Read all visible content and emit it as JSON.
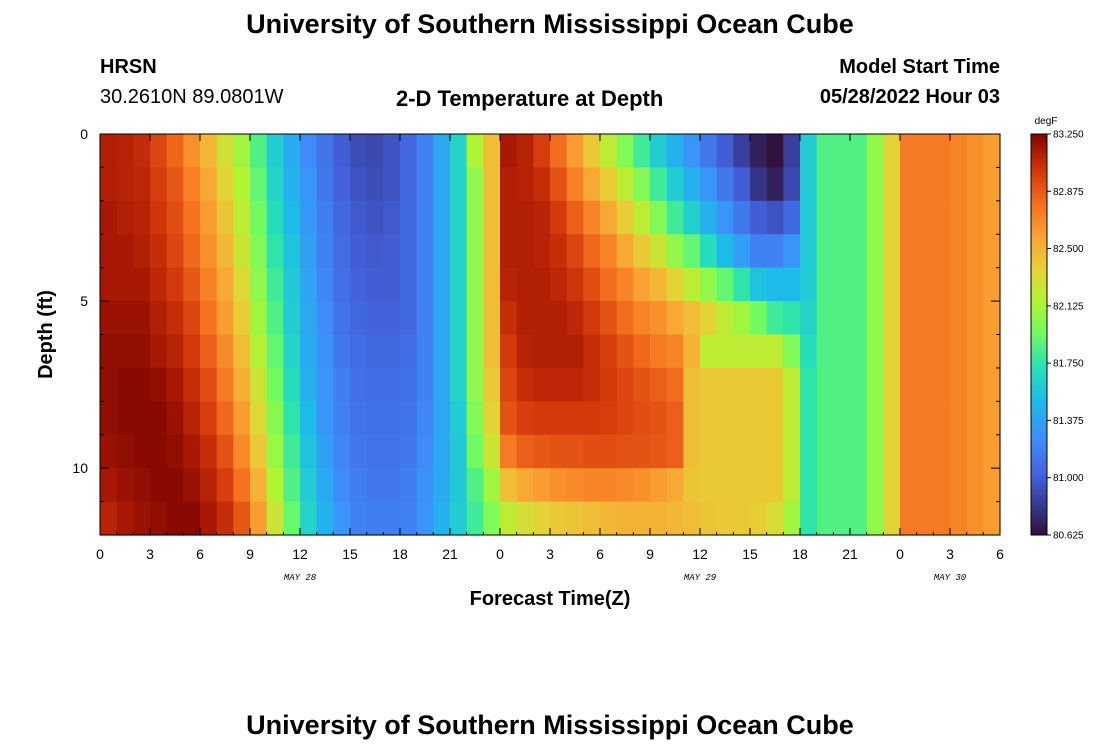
{
  "page": {
    "title": "University of Southern Mississippi Ocean Cube",
    "station": "HRSN",
    "coords": "30.2610N  89.0801W",
    "subtitle": "2-D Temperature at Depth",
    "model_label": "Model Start Time",
    "model_time": "05/28/2022 Hour 03",
    "footer_title": "University of Southern Mississippi Ocean Cube"
  },
  "chart_data": {
    "type": "heatmap",
    "title": "2-D Temperature at Depth",
    "xlabel": "Forecast Time(Z)",
    "ylabel": "Depth (ft)",
    "x_ticks": [
      "0",
      "3",
      "6",
      "9",
      "12",
      "15",
      "18",
      "21",
      "0",
      "3",
      "6",
      "9",
      "12",
      "15",
      "18",
      "21",
      "0",
      "3",
      "6"
    ],
    "x_tick_hours": [
      0,
      3,
      6,
      9,
      12,
      15,
      18,
      21,
      24,
      27,
      30,
      33,
      36,
      39,
      42,
      45,
      48,
      51,
      54
    ],
    "date_labels": [
      {
        "label": "MAY 28",
        "hour": 12
      },
      {
        "label": "MAY 29",
        "hour": 36
      },
      {
        "label": "MAY 30",
        "hour": 51
      }
    ],
    "xlim": [
      0,
      54
    ],
    "y_ticks": [
      "0",
      "5",
      "10"
    ],
    "y_tick_values": [
      0,
      5,
      10
    ],
    "ylim": [
      0,
      12
    ],
    "y_inverted": true,
    "colorbar": {
      "unit": "degF",
      "labels": [
        "83.250",
        "82.875",
        "82.500",
        "82.125",
        "81.750",
        "81.375",
        "81.000",
        "80.625"
      ],
      "min": 80.625,
      "max": 83.25
    },
    "time_hours": [
      0,
      1,
      2,
      3,
      4,
      5,
      6,
      7,
      8,
      9,
      10,
      11,
      12,
      13,
      14,
      15,
      16,
      17,
      18,
      19,
      20,
      21,
      22,
      23,
      24,
      25,
      26,
      27,
      28,
      29,
      30,
      31,
      32,
      33,
      34,
      35,
      36,
      37,
      38,
      39,
      40,
      41,
      42,
      43,
      44,
      45,
      46,
      47,
      48,
      49,
      50,
      51,
      52,
      53,
      54
    ],
    "depth_ft": [
      0.5,
      1.5,
      2.5,
      3.5,
      4.5,
      5.5,
      6.5,
      7.5,
      8.5,
      9.5,
      10.5,
      11.5
    ],
    "values_degF": [
      [
        83.12,
        83.1,
        83.06,
        82.95,
        82.83,
        82.65,
        82.48,
        82.28,
        82.1,
        81.85,
        81.6,
        81.42,
        81.25,
        81.12,
        81.0,
        80.92,
        80.9,
        80.95,
        81.05,
        81.2,
        81.4,
        81.65,
        82.15,
        82.45,
        83.15,
        83.1,
        82.98,
        82.8,
        82.6,
        82.4,
        82.2,
        82.0,
        81.8,
        81.6,
        81.45,
        81.3,
        81.15,
        81.0,
        80.85,
        80.7,
        80.62,
        80.85,
        81.6,
        81.85,
        81.85,
        81.85,
        82.05,
        82.35,
        82.75,
        82.75,
        82.75,
        82.7,
        82.65,
        82.6,
        82.55
      ],
      [
        83.12,
        83.1,
        83.08,
        82.98,
        82.88,
        82.72,
        82.55,
        82.35,
        82.15,
        81.9,
        81.65,
        81.45,
        81.3,
        81.15,
        81.02,
        80.95,
        80.92,
        80.95,
        81.05,
        81.2,
        81.4,
        81.65,
        82.05,
        82.45,
        83.12,
        83.1,
        83.05,
        82.9,
        82.72,
        82.55,
        82.38,
        82.2,
        82.0,
        81.8,
        81.6,
        81.45,
        81.3,
        81.15,
        81.0,
        80.8,
        80.7,
        80.9,
        81.6,
        81.85,
        81.85,
        81.85,
        82.05,
        82.35,
        82.75,
        82.75,
        82.75,
        82.7,
        82.65,
        82.6,
        82.55
      ],
      [
        83.15,
        83.12,
        83.1,
        83.02,
        82.92,
        82.78,
        82.6,
        82.42,
        82.2,
        81.95,
        81.7,
        81.5,
        81.32,
        81.18,
        81.05,
        80.98,
        80.95,
        80.98,
        81.05,
        81.2,
        81.4,
        81.65,
        82.05,
        82.45,
        83.12,
        83.12,
        83.1,
        83.0,
        82.85,
        82.7,
        82.55,
        82.38,
        82.2,
        82.0,
        81.8,
        81.62,
        81.45,
        81.3,
        81.15,
        81.0,
        80.95,
        81.05,
        81.6,
        81.85,
        81.85,
        81.85,
        82.05,
        82.35,
        82.75,
        82.75,
        82.75,
        82.7,
        82.65,
        82.6,
        82.55
      ],
      [
        83.15,
        83.15,
        83.12,
        83.05,
        82.95,
        82.82,
        82.65,
        82.48,
        82.25,
        82.0,
        81.75,
        81.55,
        81.35,
        81.2,
        81.08,
        81.0,
        80.98,
        81.0,
        81.05,
        81.2,
        81.4,
        81.65,
        82.05,
        82.45,
        83.12,
        83.12,
        83.1,
        83.05,
        82.95,
        82.82,
        82.7,
        82.55,
        82.4,
        82.25,
        82.05,
        81.9,
        81.7,
        81.5,
        81.35,
        81.2,
        81.2,
        81.3,
        81.6,
        81.85,
        81.85,
        81.85,
        82.05,
        82.35,
        82.75,
        82.75,
        82.75,
        82.7,
        82.65,
        82.6,
        82.55
      ],
      [
        83.15,
        83.15,
        83.15,
        83.08,
        83.0,
        82.88,
        82.72,
        82.55,
        82.32,
        82.05,
        81.8,
        81.58,
        81.38,
        81.22,
        81.1,
        81.02,
        81.0,
        81.0,
        81.05,
        81.2,
        81.4,
        81.65,
        82.05,
        82.45,
        83.1,
        83.12,
        83.12,
        83.08,
        83.02,
        82.92,
        82.8,
        82.7,
        82.58,
        82.48,
        82.35,
        82.2,
        82.05,
        81.9,
        81.75,
        81.55,
        81.5,
        81.5,
        81.6,
        81.85,
        81.85,
        81.85,
        82.05,
        82.35,
        82.75,
        82.75,
        82.75,
        82.7,
        82.65,
        82.6,
        82.55
      ],
      [
        83.18,
        83.18,
        83.18,
        83.12,
        83.05,
        82.95,
        82.78,
        82.6,
        82.38,
        82.1,
        81.85,
        81.6,
        81.4,
        81.25,
        81.12,
        81.05,
        81.02,
        81.02,
        81.05,
        81.2,
        81.4,
        81.65,
        82.05,
        82.45,
        83.05,
        83.12,
        83.12,
        83.12,
        83.08,
        83.0,
        82.9,
        82.8,
        82.7,
        82.65,
        82.55,
        82.45,
        82.35,
        82.2,
        82.1,
        81.95,
        81.8,
        81.75,
        81.65,
        81.85,
        81.85,
        81.85,
        82.05,
        82.35,
        82.75,
        82.75,
        82.75,
        82.7,
        82.65,
        82.6,
        82.55
      ],
      [
        83.2,
        83.2,
        83.2,
        83.15,
        83.1,
        83.0,
        82.85,
        82.68,
        82.45,
        82.18,
        81.9,
        81.65,
        81.42,
        81.28,
        81.15,
        81.08,
        81.05,
        81.05,
        81.08,
        81.2,
        81.4,
        81.65,
        82.05,
        82.45,
        83.0,
        83.1,
        83.12,
        83.12,
        83.12,
        83.05,
        82.98,
        82.9,
        82.82,
        82.75,
        82.7,
        82.5,
        82.2,
        82.2,
        82.2,
        82.2,
        82.2,
        82.0,
        81.7,
        81.85,
        81.85,
        81.85,
        82.05,
        82.35,
        82.75,
        82.75,
        82.75,
        82.7,
        82.65,
        82.6,
        82.55
      ],
      [
        83.2,
        83.22,
        83.22,
        83.2,
        83.15,
        83.05,
        82.92,
        82.75,
        82.52,
        82.25,
        81.95,
        81.7,
        81.45,
        81.3,
        81.18,
        81.1,
        81.08,
        81.08,
        81.1,
        81.2,
        81.4,
        81.65,
        82.05,
        82.4,
        82.95,
        83.05,
        83.08,
        83.08,
        83.08,
        83.05,
        83.0,
        82.95,
        82.9,
        82.85,
        82.8,
        82.45,
        82.4,
        82.4,
        82.4,
        82.4,
        82.4,
        82.2,
        81.75,
        81.85,
        81.85,
        81.85,
        82.05,
        82.35,
        82.75,
        82.75,
        82.75,
        82.7,
        82.65,
        82.6,
        82.55
      ],
      [
        83.2,
        83.22,
        83.22,
        83.22,
        83.18,
        83.1,
        82.98,
        82.82,
        82.6,
        82.32,
        82.02,
        81.75,
        81.5,
        81.32,
        81.2,
        81.12,
        81.1,
        81.1,
        81.12,
        81.22,
        81.4,
        81.6,
        82.0,
        82.35,
        82.9,
        82.98,
        83.0,
        83.0,
        83.0,
        83.0,
        82.98,
        82.95,
        82.92,
        82.9,
        82.85,
        82.45,
        82.4,
        82.4,
        82.4,
        82.4,
        82.4,
        82.2,
        81.75,
        81.85,
        81.85,
        81.85,
        82.05,
        82.35,
        82.75,
        82.75,
        82.75,
        82.7,
        82.65,
        82.6,
        82.55
      ],
      [
        83.18,
        83.2,
        83.22,
        83.22,
        83.2,
        83.15,
        83.05,
        82.9,
        82.68,
        82.4,
        82.08,
        81.8,
        81.55,
        81.35,
        81.22,
        81.15,
        81.12,
        81.12,
        81.15,
        81.25,
        81.4,
        81.58,
        81.95,
        82.25,
        82.75,
        82.85,
        82.88,
        82.9,
        82.9,
        82.92,
        82.92,
        82.9,
        82.9,
        82.88,
        82.85,
        82.45,
        82.4,
        82.4,
        82.4,
        82.4,
        82.4,
        82.2,
        81.75,
        81.85,
        81.85,
        81.85,
        82.05,
        82.35,
        82.75,
        82.75,
        82.75,
        82.7,
        82.65,
        82.6,
        82.55
      ],
      [
        83.15,
        83.18,
        83.2,
        83.22,
        83.22,
        83.18,
        83.1,
        82.98,
        82.78,
        82.5,
        82.15,
        81.85,
        81.6,
        81.4,
        81.25,
        81.18,
        81.15,
        81.15,
        81.18,
        81.28,
        81.42,
        81.58,
        81.85,
        82.1,
        82.45,
        82.55,
        82.6,
        82.65,
        82.68,
        82.7,
        82.7,
        82.68,
        82.65,
        82.6,
        82.55,
        82.42,
        82.4,
        82.4,
        82.4,
        82.4,
        82.4,
        82.2,
        81.75,
        81.85,
        81.85,
        81.85,
        82.05,
        82.35,
        82.75,
        82.75,
        82.75,
        82.7,
        82.65,
        82.6,
        82.55
      ],
      [
        83.1,
        83.15,
        83.18,
        83.2,
        83.22,
        83.22,
        83.15,
        83.05,
        82.88,
        82.6,
        82.25,
        81.92,
        81.65,
        81.45,
        81.3,
        81.2,
        81.18,
        81.18,
        81.2,
        81.3,
        81.45,
        81.6,
        81.8,
        82.0,
        82.2,
        82.3,
        82.35,
        82.4,
        82.42,
        82.45,
        82.48,
        82.5,
        82.5,
        82.5,
        82.48,
        82.45,
        82.42,
        82.4,
        82.4,
        82.38,
        82.3,
        82.1,
        81.75,
        81.85,
        81.85,
        81.85,
        82.05,
        82.35,
        82.75,
        82.75,
        82.75,
        82.7,
        82.65,
        82.6,
        82.55
      ]
    ]
  }
}
